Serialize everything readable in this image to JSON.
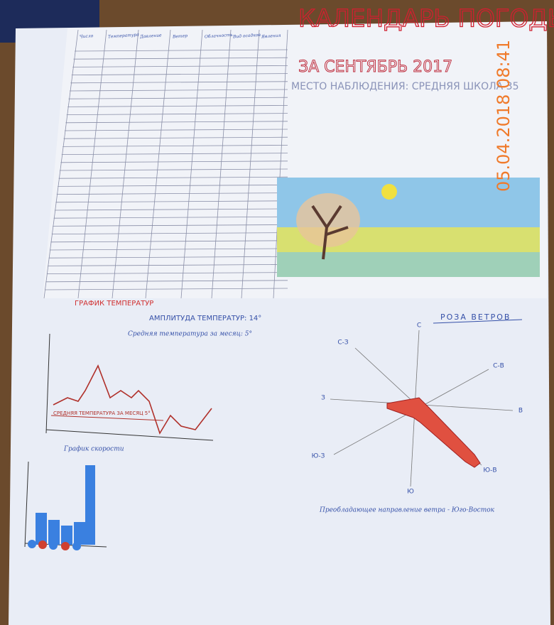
{
  "timestamp": "05.04.2018 08:41",
  "header": {
    "title": "КАЛЕНДАРЬ ПОГОДЫ",
    "period": "ЗА СЕНТЯБРЬ 2017",
    "place": "МЕСТО НАБЛЮДЕНИЯ: СРЕДНЯЯ ШКОЛА 35"
  },
  "table": {
    "columns": [
      "Число",
      "Температура",
      "Давление",
      "Ветер",
      "Облачность",
      "Вид осадков",
      "Явления"
    ]
  },
  "temperature_chart": {
    "title": "ГРАФИК ТЕМПЕРАТУР",
    "amplitude": "АМПЛИТУДА ТЕМПЕРАТУР: 14°",
    "average": "Средняя температура за месяц: 5°",
    "line_label": "СРЕДНЯЯ ТЕМПЕРАТУРА ЗА МЕСЯЦ 5°"
  },
  "speed_chart": {
    "title": "График скорости"
  },
  "wind_rose": {
    "title": "РОЗА ВЕТРОВ",
    "directions": [
      "С",
      "С-В",
      "В",
      "Ю-В",
      "Ю",
      "Ю-З",
      "З",
      "С-З"
    ],
    "note": "Преобладающее направление ветра - Юго-Восток"
  }
}
